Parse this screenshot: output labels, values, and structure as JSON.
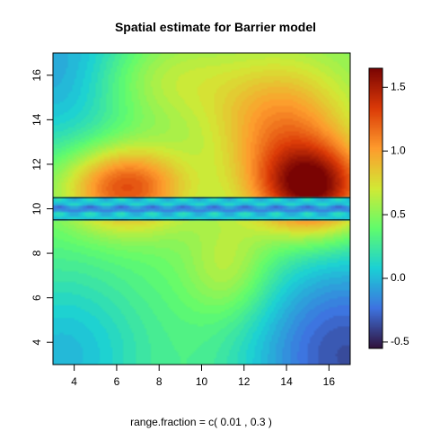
{
  "chart_data": {
    "type": "heatmap",
    "title": "Spatial estimate for Barrier model",
    "xlabel": "range.fraction = c( 0.01 ,  0.3 )",
    "ylabel": "",
    "xlim": [
      3,
      17
    ],
    "ylim": [
      3,
      17
    ],
    "x_ticks": [
      4,
      6,
      8,
      10,
      12,
      14,
      16
    ],
    "y_ticks": [
      4,
      6,
      8,
      10,
      12,
      14,
      16
    ],
    "barrier": {
      "y_min": 9.5,
      "y_max": 10.5
    },
    "colorbar": {
      "min": -0.55,
      "max": 1.65,
      "ticks": [
        -0.5,
        0.0,
        0.5,
        1.0,
        1.5
      ],
      "tick_labels": [
        "-0.5",
        "0.0",
        "0.5",
        "1.0",
        "1.5"
      ]
    },
    "palette": [
      "#30123b",
      "#3e73e0",
      "#1bd0d5",
      "#61fc6c",
      "#d2e935",
      "#fe9b2d",
      "#db3a07",
      "#7a0403"
    ],
    "hotspots": [
      {
        "x": 6.4,
        "y": 11.0,
        "value": 1.35
      },
      {
        "x": 15.2,
        "y": 10.9,
        "value": 1.65
      },
      {
        "x": 13.8,
        "y": 13.8,
        "value": 1.05
      },
      {
        "x": 7.5,
        "y": 15.8,
        "value": 0.85
      },
      {
        "x": 11.3,
        "y": 7.3,
        "value": 0.75
      },
      {
        "x": 3.8,
        "y": 16.2,
        "value": -0.15
      },
      {
        "x": 16.8,
        "y": 3.4,
        "value": -0.35
      },
      {
        "x": 3.4,
        "y": 3.4,
        "value": 0.0
      }
    ]
  }
}
